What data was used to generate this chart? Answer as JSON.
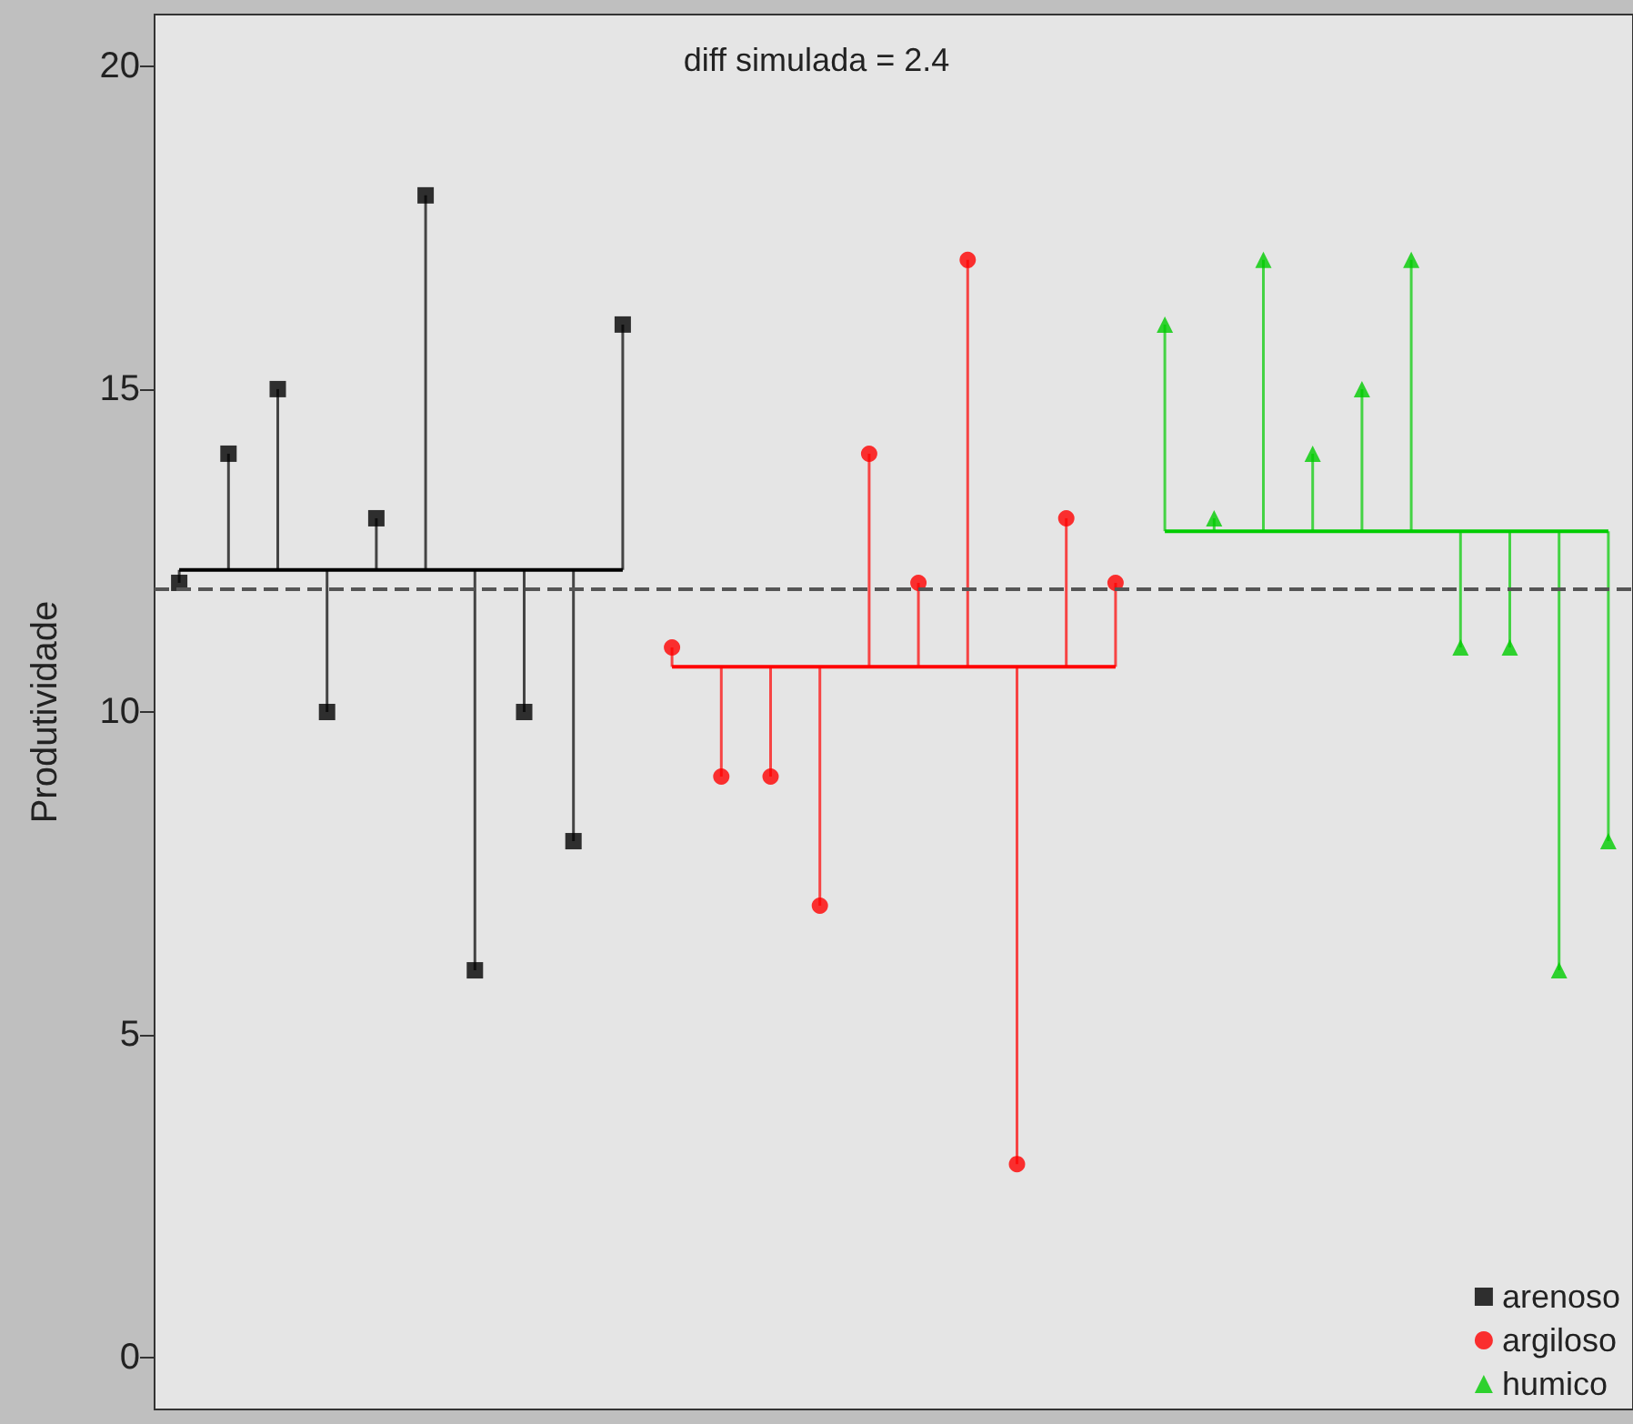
{
  "chart_data": {
    "type": "lollipop",
    "ylabel": "Produtividade",
    "annotations": [
      "diff simulada = 2.4"
    ],
    "categories": [
      null,
      null,
      null,
      null,
      null,
      null,
      null,
      null,
      null,
      null,
      null,
      null,
      null,
      null,
      null,
      null,
      null,
      null,
      null,
      null,
      null,
      null,
      null,
      null,
      null,
      null,
      null,
      null,
      null,
      null
    ],
    "ylim": [
      -0.8,
      20.8
    ],
    "yticks": [
      0,
      5,
      10,
      15,
      20
    ],
    "grid": false,
    "legend": "bottom right",
    "ref_lines": [
      {
        "axis": "y",
        "value": 11.9,
        "line_style": "dashed",
        "color": "#555555"
      }
    ],
    "series": [
      {
        "name": "arenoso",
        "color": "#000000",
        "marker": "square",
        "values": [
          12,
          14,
          15,
          10,
          13,
          18,
          6,
          10,
          8,
          16,
          null,
          null,
          null,
          null,
          null,
          null,
          null,
          null,
          null,
          null,
          null,
          null,
          null,
          null,
          null,
          null,
          null,
          null,
          null,
          null
        ],
        "errors": [
          [
            12,
            12.2
          ],
          [
            12.2,
            14
          ],
          [
            12.2,
            15
          ],
          [
            10,
            12.2
          ],
          [
            12.2,
            13
          ],
          [
            12.2,
            18
          ],
          [
            6,
            12.2
          ],
          [
            10,
            12.2
          ],
          [
            8,
            12.2
          ],
          [
            12.2,
            16
          ],
          null,
          null,
          null,
          null,
          null,
          null,
          null,
          null,
          null,
          null,
          null,
          null,
          null,
          null,
          null,
          null,
          null,
          null,
          null,
          null
        ]
      },
      {
        "name": "argiloso",
        "color": "#ff0000",
        "marker": "circle",
        "values": [
          null,
          null,
          null,
          null,
          null,
          null,
          null,
          null,
          null,
          null,
          11,
          9,
          9,
          7,
          14,
          12,
          17,
          3,
          13,
          12,
          null,
          null,
          null,
          null,
          null,
          null,
          null,
          null,
          null,
          null
        ],
        "errors": [
          null,
          null,
          null,
          null,
          null,
          null,
          null,
          null,
          null,
          null,
          [
            10.7,
            11
          ],
          [
            9,
            10.7
          ],
          [
            9,
            10.7
          ],
          [
            7,
            10.7
          ],
          [
            10.7,
            14
          ],
          [
            10.7,
            12
          ],
          [
            10.7,
            17
          ],
          [
            3,
            10.7
          ],
          [
            10.7,
            13
          ],
          [
            10.7,
            12
          ],
          null,
          null,
          null,
          null,
          null,
          null,
          null,
          null,
          null,
          null
        ]
      },
      {
        "name": "humico",
        "color": "#00cc00",
        "marker": "triangle",
        "values": [
          null,
          null,
          null,
          null,
          null,
          null,
          null,
          null,
          null,
          null,
          null,
          null,
          null,
          null,
          null,
          null,
          null,
          null,
          null,
          null,
          16,
          13,
          17,
          14,
          15,
          17,
          11,
          11,
          6,
          8
        ],
        "errors": [
          null,
          null,
          null,
          null,
          null,
          null,
          null,
          null,
          null,
          null,
          null,
          null,
          null,
          null,
          null,
          null,
          null,
          null,
          null,
          null,
          [
            12.8,
            16
          ],
          [
            12.8,
            13
          ],
          [
            12.8,
            17
          ],
          [
            12.8,
            14
          ],
          [
            12.8,
            15
          ],
          [
            12.8,
            17
          ],
          [
            11,
            12.8
          ],
          [
            11,
            12.8
          ],
          [
            6,
            12.8
          ],
          [
            8,
            12.8
          ]
        ]
      },
      {
        "type": "line",
        "color": "#000000",
        "values": [
          12.2,
          12.2,
          12.2,
          12.2,
          12.2,
          12.2,
          12.2,
          12.2,
          12.2,
          12.2,
          null,
          null,
          null,
          null,
          null,
          null,
          null,
          null,
          null,
          null,
          null,
          null,
          null,
          null,
          null,
          null,
          null,
          null,
          null,
          null
        ]
      },
      {
        "type": "line",
        "color": "#ff0000",
        "values": [
          null,
          null,
          null,
          null,
          null,
          null,
          null,
          null,
          null,
          null,
          10.7,
          10.7,
          10.7,
          10.7,
          10.7,
          10.7,
          10.7,
          10.7,
          10.7,
          10.7,
          null,
          null,
          null,
          null,
          null,
          null,
          null,
          null,
          null,
          null
        ]
      },
      {
        "type": "line",
        "color": "#00cc00",
        "values": [
          null,
          null,
          null,
          null,
          null,
          null,
          null,
          null,
          null,
          null,
          null,
          null,
          null,
          null,
          null,
          null,
          null,
          null,
          null,
          null,
          12.8,
          12.8,
          12.8,
          12.8,
          12.8,
          12.8,
          12.8,
          12.8,
          12.8,
          12.8
        ]
      }
    ]
  }
}
